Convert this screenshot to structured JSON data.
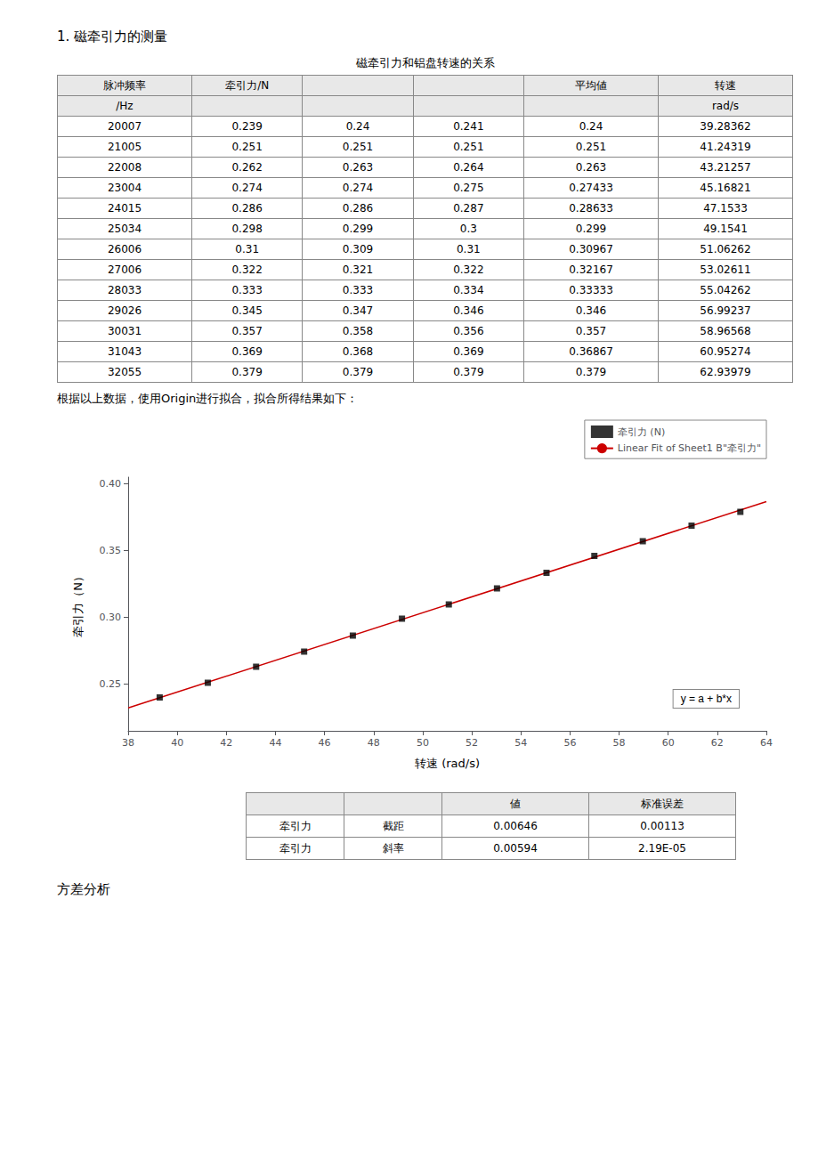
{
  "section_title": "1. 磁牵引力的测量",
  "table_title": "磁牵引力和铝盘转速的关系",
  "table": {
    "header_rows": [
      [
        "脉冲频率",
        "牵引力/N",
        null,
        null,
        "平均値",
        "转速"
      ],
      [
        "/Hz",
        null,
        null,
        null,
        null,
        "rad/s"
      ]
    ],
    "rows": [
      [
        "20007",
        "0.239",
        "0.24",
        "0.241",
        "0.24",
        "39.28362"
      ],
      [
        "21005",
        "0.251",
        "0.251",
        "0.251",
        "0.251",
        "41.24319"
      ],
      [
        "22008",
        "0.262",
        "0.263",
        "0.264",
        "0.263",
        "43.21257"
      ],
      [
        "23004",
        "0.274",
        "0.274",
        "0.275",
        "0.27433",
        "45.16821"
      ],
      [
        "24015",
        "0.286",
        "0.286",
        "0.287",
        "0.28633",
        "47.1533"
      ],
      [
        "25034",
        "0.298",
        "0.299",
        "0.3",
        "0.299",
        "49.1541"
      ],
      [
        "26006",
        "0.31",
        "0.309",
        "0.31",
        "0.30967",
        "51.06262"
      ],
      [
        "27006",
        "0.322",
        "0.321",
        "0.322",
        "0.32167",
        "53.02611"
      ],
      [
        "28033",
        "0.333",
        "0.333",
        "0.334",
        "0.33333",
        "55.04262"
      ],
      [
        "29026",
        "0.345",
        "0.347",
        "0.346",
        "0.346",
        "56.99237"
      ],
      [
        "30031",
        "0.357",
        "0.358",
        "0.356",
        "0.357",
        "58.96568"
      ],
      [
        "31043",
        "0.369",
        "0.368",
        "0.369",
        "0.36867",
        "60.95274"
      ],
      [
        "32055",
        "0.379",
        "0.379",
        "0.379",
        "0.379",
        "62.93979"
      ]
    ]
  },
  "text_below_table": "根据以上数据，使用Origin进行拟合，拟合所得结果如下：",
  "chart_data": {
    "type": "scatter",
    "xlabel": "转速 (rad/s)",
    "ylabel": "牵引力（N）",
    "xlim": [
      38,
      64
    ],
    "ylim": [
      0.215,
      0.405
    ],
    "xticks": [
      38,
      40,
      42,
      44,
      46,
      48,
      50,
      52,
      54,
      56,
      58,
      60,
      62,
      64
    ],
    "yticks": [
      0.25,
      {
        "value": 0.3,
        "label": "0.30"
      },
      0.35,
      {
        "value": 0.4,
        "label": "0.40"
      }
    ],
    "grid": false,
    "legend": "upper right",
    "annotations": [
      "y = a + b*x"
    ],
    "series": [
      {
        "name": "牵引力 (N)",
        "type": "scatter",
        "marker": "square",
        "color": "#000000",
        "x": [
          39.28362,
          41.24319,
          43.21257,
          45.16821,
          47.1533,
          49.1541,
          51.06262,
          53.02611,
          55.04262,
          56.99237,
          58.96568,
          60.95274,
          62.93979
        ],
        "values": [
          0.24,
          0.251,
          0.263,
          0.27433,
          0.28633,
          0.299,
          0.30967,
          0.32167,
          0.33333,
          0.346,
          0.357,
          0.36867,
          0.379
        ]
      },
      {
        "name": "Linear Fit of Sheet1 B\"牵引力\"",
        "type": "line",
        "line_style": "solid",
        "color": "#cc0000",
        "x": [
          38,
          64
        ],
        "values": [
          0.23218,
          0.38662
        ]
      }
    ]
  },
  "stats_table": [
    [
      null,
      null,
      "値",
      "标准误差"
    ],
    [
      "牵引力",
      "截距",
      "0.00646",
      "0.00113"
    ],
    [
      "牵引力",
      "斜率",
      "0.00594",
      "2.19E-05"
    ]
  ],
  "footer_text": "方差分析"
}
